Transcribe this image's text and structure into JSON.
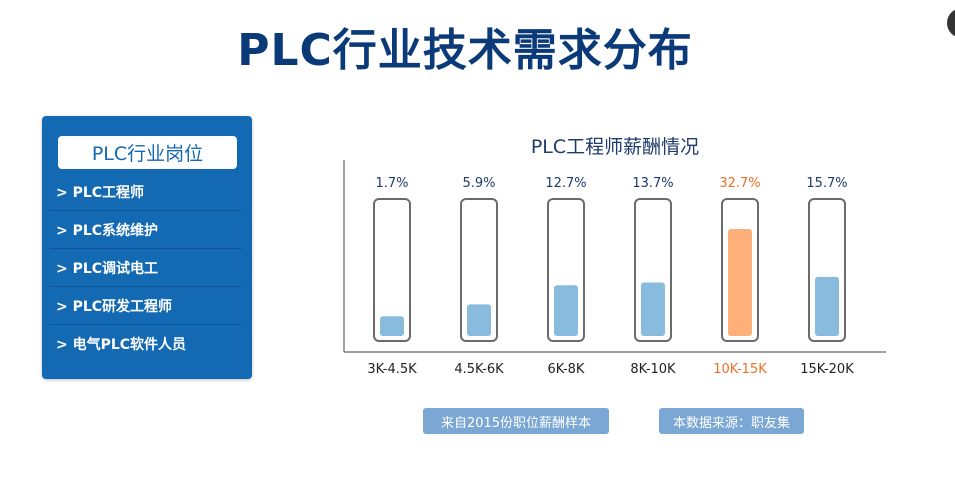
{
  "page": {
    "title": "PLC行业技术需求分布"
  },
  "sidebar": {
    "title": "PLC行业岗位",
    "items": [
      {
        "label": "> PLC工程师"
      },
      {
        "label": "> PLC系统维护"
      },
      {
        "label": "> PLC调试电工"
      },
      {
        "label": "> PLC研发工程师"
      },
      {
        "label": "> 电气PLC软件人员"
      }
    ]
  },
  "footer": {
    "sample_label": "来自2015份职位薪酬样本",
    "source_label": "本数据来源：职友集"
  },
  "colors": {
    "bar_normal": "#88bbde",
    "bar_highlight": "#ffb07a",
    "label_highlight": "#ef6f22",
    "label_normal": "#1f3b6b"
  },
  "chart_data": {
    "type": "bar",
    "title": "PLC工程师薪酬情况",
    "categories": [
      "3K-4.5K",
      "4.5K-6K",
      "6K-8K",
      "8K-10K",
      "10K-15K",
      "15K-20K"
    ],
    "values": [
      1.7,
      5.9,
      12.7,
      13.7,
      32.7,
      15.7
    ],
    "value_labels": [
      "1.7%",
      "5.9%",
      "12.7%",
      "13.7%",
      "32.7%",
      "15.7%"
    ],
    "highlight_index": 4,
    "unit": "%",
    "grid": false,
    "legend": "none"
  }
}
